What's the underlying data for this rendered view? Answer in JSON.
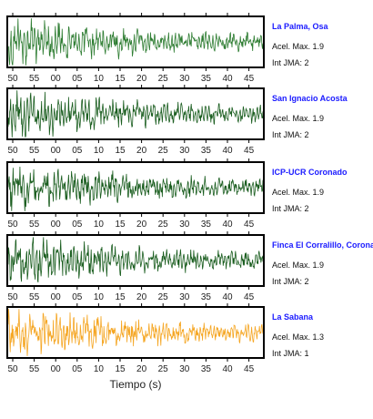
{
  "chart_data": [
    {
      "type": "line",
      "station": "La Palma, Osa",
      "acel_label": "Acel. Max. 1.9",
      "jma_label": "Int JMA: 2",
      "color": "#2e7d32",
      "ticks": [
        "50",
        "55",
        "00",
        "05",
        "10",
        "15",
        "20",
        "25",
        "30",
        "35",
        "40",
        "45"
      ],
      "tick_values": [
        50,
        55,
        0,
        5,
        10,
        15,
        20,
        25,
        30,
        35,
        40,
        45
      ],
      "show_ticks": true
    },
    {
      "type": "line",
      "station": "San Ignacio Acosta",
      "acel_label": "Acel. Max. 1.9",
      "jma_label": "Int JMA: 2",
      "color": "#1b5e20",
      "ticks": [
        "50",
        "55",
        "00",
        "05",
        "10",
        "15",
        "20",
        "25",
        "30",
        "35",
        "40",
        "45"
      ],
      "tick_values": [
        50,
        55,
        0,
        5,
        10,
        15,
        20,
        25,
        30,
        35,
        40,
        45
      ],
      "show_ticks": true
    },
    {
      "type": "line",
      "station": "ICP-UCR Coronado",
      "acel_label": "Acel. Max. 1.9",
      "jma_label": "Int JMA: 2",
      "color": "#1b5e20",
      "ticks": [
        "50",
        "55",
        "00",
        "05",
        "10",
        "15",
        "20",
        "25",
        "30",
        "35",
        "40",
        "45"
      ],
      "tick_values": [
        50,
        55,
        0,
        5,
        10,
        15,
        20,
        25,
        30,
        35,
        40,
        45
      ],
      "show_ticks": true
    },
    {
      "type": "line",
      "station": "Finca El Corralillo, Coronado",
      "acel_label": "Acel. Max. 1.9",
      "jma_label": "Int JMA: 2",
      "color": "#1b5e20",
      "ticks": [
        "50",
        "55",
        "00",
        "05",
        "10",
        "15",
        "20",
        "25",
        "30",
        "35",
        "40",
        "45"
      ],
      "tick_values": [
        50,
        55,
        0,
        5,
        10,
        15,
        20,
        25,
        30,
        35,
        40,
        45
      ],
      "show_ticks": true
    },
    {
      "type": "line",
      "station": "La Sabana",
      "acel_label": "Acel. Max. 1.3",
      "jma_label": "Int JMA: 1",
      "color": "#f5a623",
      "ticks": [
        "50",
        "55",
        "00",
        "05",
        "10",
        "15",
        "20",
        "25",
        "30",
        "35",
        "40",
        "45"
      ],
      "tick_values": [
        50,
        55,
        0,
        5,
        10,
        15,
        20,
        25,
        30,
        35,
        40,
        45
      ],
      "show_ticks": true
    }
  ],
  "xlabel": "Tiempo (s)",
  "station_name_color": "#1a1aff"
}
